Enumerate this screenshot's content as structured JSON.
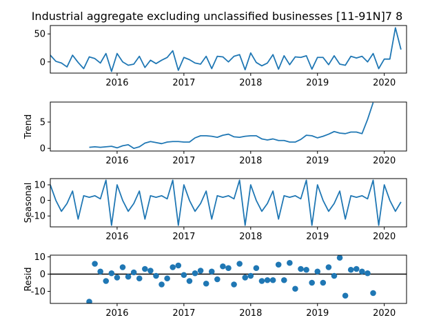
{
  "figure_title": "Industrial aggregate excluding unclassified businesses  [11-91N]7 8",
  "chart_data": [
    {
      "type": "line",
      "panel": "observed",
      "ylabel": "",
      "ylim": [
        -20,
        65
      ],
      "yticks": [
        0,
        50
      ],
      "xlim": [
        "2015-01",
        "2020-05"
      ],
      "xticks": [
        "2016",
        "2017",
        "2018",
        "2019",
        "2020"
      ],
      "series": [
        {
          "x_start": "2015-01",
          "freq": "monthly",
          "values": [
            12,
            1,
            -2,
            -9,
            12,
            -1,
            -12,
            9,
            6,
            -2,
            15,
            -17,
            15,
            0,
            -6,
            -4,
            10,
            -10,
            3,
            -3,
            3,
            8,
            20,
            -15,
            8,
            4,
            -2,
            -4,
            10,
            -12,
            10,
            9,
            0,
            10,
            13,
            -14,
            16,
            -1,
            -7,
            -2,
            13,
            -13,
            11,
            -5,
            9,
            8,
            11,
            -13,
            8,
            8,
            -5,
            11,
            -4,
            -6,
            10,
            7,
            10,
            0,
            15,
            -12,
            5,
            5,
            61,
            22
          ]
        }
      ]
    },
    {
      "type": "line",
      "panel": "trend",
      "ylabel": "Trend",
      "ylim": [
        -0.5,
        8.8
      ],
      "yticks": [
        0,
        5
      ],
      "xlim": [
        "2015-01",
        "2020-05"
      ],
      "xticks": [
        "2016",
        "2017",
        "2018",
        "2019",
        "2020"
      ],
      "series": [
        {
          "x_start": "2015-08",
          "freq": "monthly",
          "values": [
            0.2,
            0.3,
            0.2,
            0.3,
            0.4,
            0.1,
            0.5,
            0.7,
            0.0,
            0.3,
            1.0,
            1.3,
            1.1,
            0.9,
            1.2,
            1.3,
            1.3,
            1.2,
            1.2,
            2.0,
            2.4,
            2.4,
            2.3,
            2.1,
            2.5,
            2.7,
            2.2,
            2.1,
            2.3,
            2.4,
            2.4,
            1.8,
            1.6,
            1.8,
            1.5,
            1.5,
            1.2,
            1.2,
            1.7,
            2.5,
            2.4,
            2.0,
            2.3,
            2.7,
            3.2,
            2.9,
            2.8,
            3.1,
            3.1,
            2.8,
            5.5,
            8.7
          ]
        }
      ]
    },
    {
      "type": "line",
      "panel": "seasonal",
      "ylabel": "Seasonal",
      "ylim": [
        -17,
        14
      ],
      "yticks": [
        -10,
        0,
        10
      ],
      "xlim": [
        "2015-01",
        "2020-05"
      ],
      "xticks": [
        "2016",
        "2017",
        "2018",
        "2019",
        "2020"
      ],
      "series": [
        {
          "x_start": "2015-01",
          "freq": "monthly",
          "values": [
            10,
            0,
            -7,
            -2,
            6,
            -12,
            3,
            2,
            3,
            1,
            13,
            -16,
            10,
            0,
            -7,
            -2,
            6,
            -12,
            3,
            2,
            3,
            1,
            13,
            -16,
            10,
            0,
            -7,
            -2,
            6,
            -12,
            3,
            2,
            3,
            1,
            13,
            -16,
            10,
            0,
            -7,
            -2,
            6,
            -12,
            3,
            2,
            3,
            1,
            13,
            -16,
            10,
            0,
            -7,
            -2,
            6,
            -12,
            3,
            2,
            3,
            1,
            13,
            -16,
            10,
            0,
            -7,
            -1
          ]
        }
      ]
    },
    {
      "type": "scatter",
      "panel": "resid",
      "ylabel": "Resid",
      "ylim": [
        -17,
        11
      ],
      "yticks": [
        -10,
        0,
        10
      ],
      "xlim": [
        "2015-01",
        "2020-05"
      ],
      "xticks": [
        "2016",
        "2017",
        "2018",
        "2019",
        "2020"
      ],
      "hline": 0,
      "series": [
        {
          "x_start": "2015-08",
          "freq": "monthly",
          "values": [
            -16,
            6,
            1.5,
            -4,
            0.5,
            -2,
            4,
            -1.5,
            1,
            -2.5,
            3,
            2,
            -1,
            -6,
            -2.5,
            4,
            5,
            -0.5,
            -4,
            0.5,
            2,
            -5.5,
            1.5,
            -3,
            4.5,
            3.5,
            -6,
            6,
            -2,
            -1,
            3.5,
            -4,
            -3.5,
            -3.5,
            5.5,
            -3.5,
            6.5,
            -8.5,
            3,
            2.5,
            -5,
            1.5,
            -5,
            4,
            -1,
            9.5,
            -12.5,
            2.5,
            3,
            1.5,
            0.5,
            -11
          ]
        }
      ]
    }
  ]
}
